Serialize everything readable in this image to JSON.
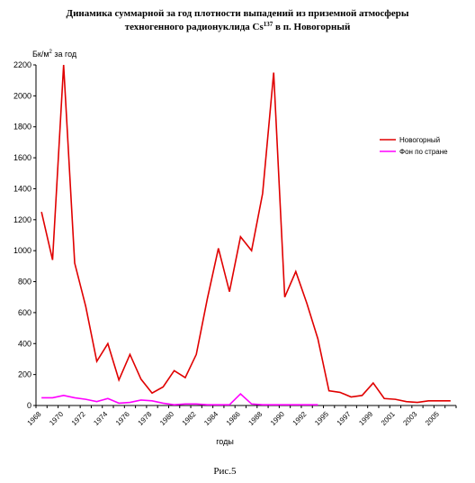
{
  "chart_data": {
    "type": "line",
    "title": [
      "Динамика суммарной за год плотности выпадений из приземной атмосферы",
      "техногенного радионуклида Cs",
      "137",
      " в п. Новогорный"
    ],
    "y_label": [
      "Бк/м",
      "2",
      " за год"
    ],
    "x_label": "годы",
    "caption": "Рис.5",
    "categories": [
      "1968",
      null,
      "1970",
      null,
      "1972",
      null,
      "1974",
      null,
      "1976",
      null,
      "1978",
      null,
      "1980",
      null,
      "1982",
      null,
      "1984",
      null,
      "1986",
      null,
      "1988",
      null,
      "1990",
      null,
      "1992",
      null,
      "1995",
      null,
      "1997",
      null,
      "1999",
      null,
      "2001",
      null,
      "2003",
      null,
      "2005",
      null
    ],
    "series": [
      {
        "name": "Новогорный",
        "color": "#e00000",
        "values": [
          1250,
          940,
          2200,
          920,
          640,
          285,
          400,
          165,
          330,
          170,
          80,
          120,
          225,
          180,
          330,
          690,
          1015,
          735,
          1090,
          1000,
          1370,
          2150,
          700,
          865,
          660,
          430,
          95,
          85,
          55,
          65,
          145,
          45,
          40,
          25,
          20,
          30,
          30,
          30
        ]
      },
      {
        "name": "Фон по стране",
        "color": "#ff00ff",
        "values": [
          50,
          50,
          65,
          50,
          40,
          25,
          45,
          15,
          20,
          35,
          30,
          15,
          5,
          10,
          10,
          5,
          5,
          5,
          75,
          10,
          5,
          5,
          5,
          5,
          5,
          5,
          null,
          null,
          null,
          null,
          null,
          null,
          null,
          null,
          null,
          null,
          null,
          null
        ]
      }
    ],
    "ylim": [
      0,
      2200
    ],
    "yticks": [
      0,
      200,
      400,
      600,
      800,
      1000,
      1200,
      1400,
      1600,
      1800,
      2000,
      2200
    ],
    "grid": false,
    "legend": "right"
  }
}
